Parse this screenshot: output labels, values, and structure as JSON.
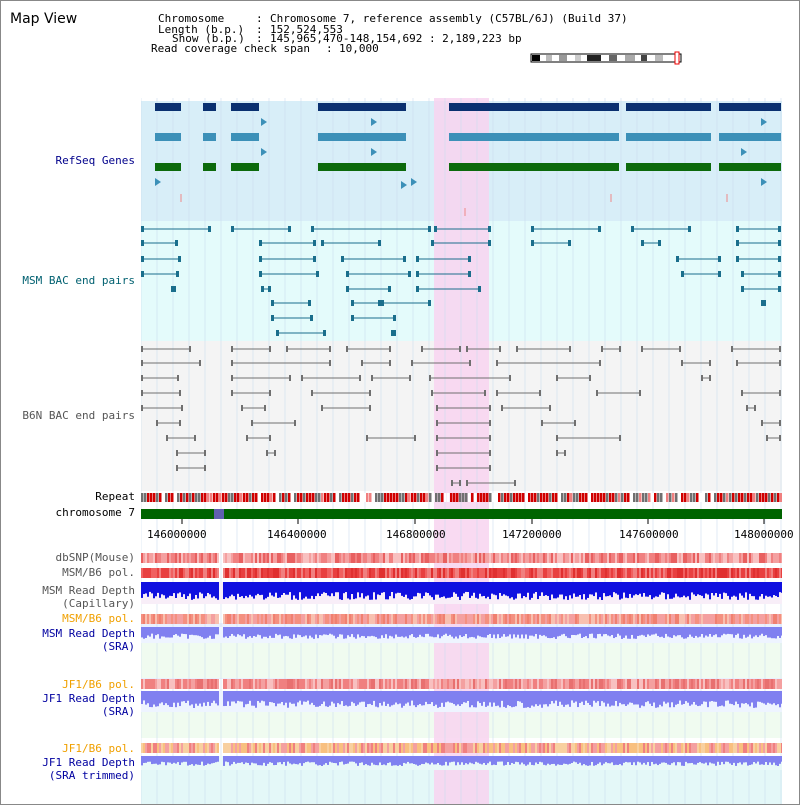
{
  "view": {
    "title": "Map View"
  },
  "info": {
    "chromosome_label": "Chromosome",
    "chromosome_value": "Chromosome 7, reference assembly (C57BL/6J) (Build 37)",
    "length_label": "Length (b.p.)",
    "length_value": "152,524,553",
    "show_label": "Show (b.p.)",
    "show_value": "145,965,470-148,154,692 : 2,189,223 bp",
    "coverage_label": "Read coverage check span",
    "coverage_value": "10,000"
  },
  "tracks": {
    "refseq": "RefSeq Genes",
    "msm_bac": "MSM BAC end pairs",
    "b6n_bac": "B6N BAC end pairs",
    "repeat": "Repeat",
    "chromosome": "chromosome 7",
    "dbsnp": "dbSNP(Mouse)",
    "msm_b6_pol": "MSM/B6 pol.",
    "msm_depth_cap_1": "MSM Read Depth",
    "msm_depth_cap_2": "(Capillary)",
    "msm_b6_pol_2": "MSM/B6 pol.",
    "msm_depth_sra_1": "MSM Read Depth",
    "msm_depth_sra_2": "(SRA)",
    "jf1_b6_pol": "JF1/B6 pol.",
    "jf1_depth_sra_1": "JF1 Read Depth",
    "jf1_depth_sra_2": "(SRA)",
    "jf1_b6_pol_2": "JF1/B6 pol.",
    "jf1_depth_trim_1": "JF1 Read Depth",
    "jf1_depth_trim_2": "(SRA trimmed)"
  },
  "axis": {
    "ticks": [
      "146000000",
      "146400000",
      "146800000",
      "147200000",
      "147600000",
      "148000000"
    ]
  },
  "colors": {
    "highlight": "#f8d4f0",
    "refseq_bg": "#d8eef8",
    "msm_bg": "#e4fbfb",
    "gene_navy": "#0a3070",
    "gene_teal": "#3c90b8",
    "gene_green": "#0c6a0c",
    "msm_pair": "#1a6e8c",
    "b6n_pair": "#707070",
    "chromosome_green": "#006400",
    "depth_blue": "#1010e0",
    "depth_light": "#8080f0"
  }
}
